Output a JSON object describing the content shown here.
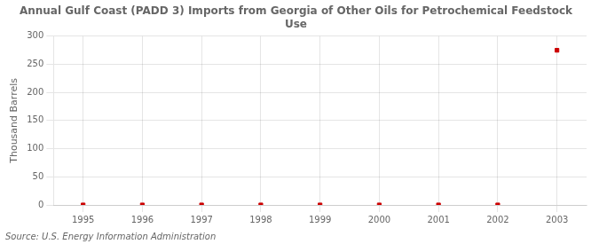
{
  "chart_data": {
    "type": "scatter",
    "title": "Annual Gulf Coast (PADD 3) Imports from Georgia of Other Oils for Petrochemical Feedstock\nUse",
    "ylabel": "Thousand Barrels",
    "source": "Source: U.S. Energy Information Administration",
    "x": [
      1995,
      1996,
      1997,
      1998,
      1999,
      2000,
      2001,
      2002,
      2003
    ],
    "values": [
      0,
      0,
      0,
      0,
      0,
      0,
      0,
      0,
      275
    ],
    "color": "#cc0000",
    "marker": "square",
    "xlim": [
      1994.5,
      2003.5
    ],
    "xticks": [
      1995,
      1996,
      1997,
      1998,
      1999,
      2000,
      2001,
      2002,
      2003
    ],
    "ylim": [
      0,
      300
    ],
    "yticks": [
      0,
      50,
      100,
      150,
      200,
      250,
      300
    ],
    "grid": true
  }
}
